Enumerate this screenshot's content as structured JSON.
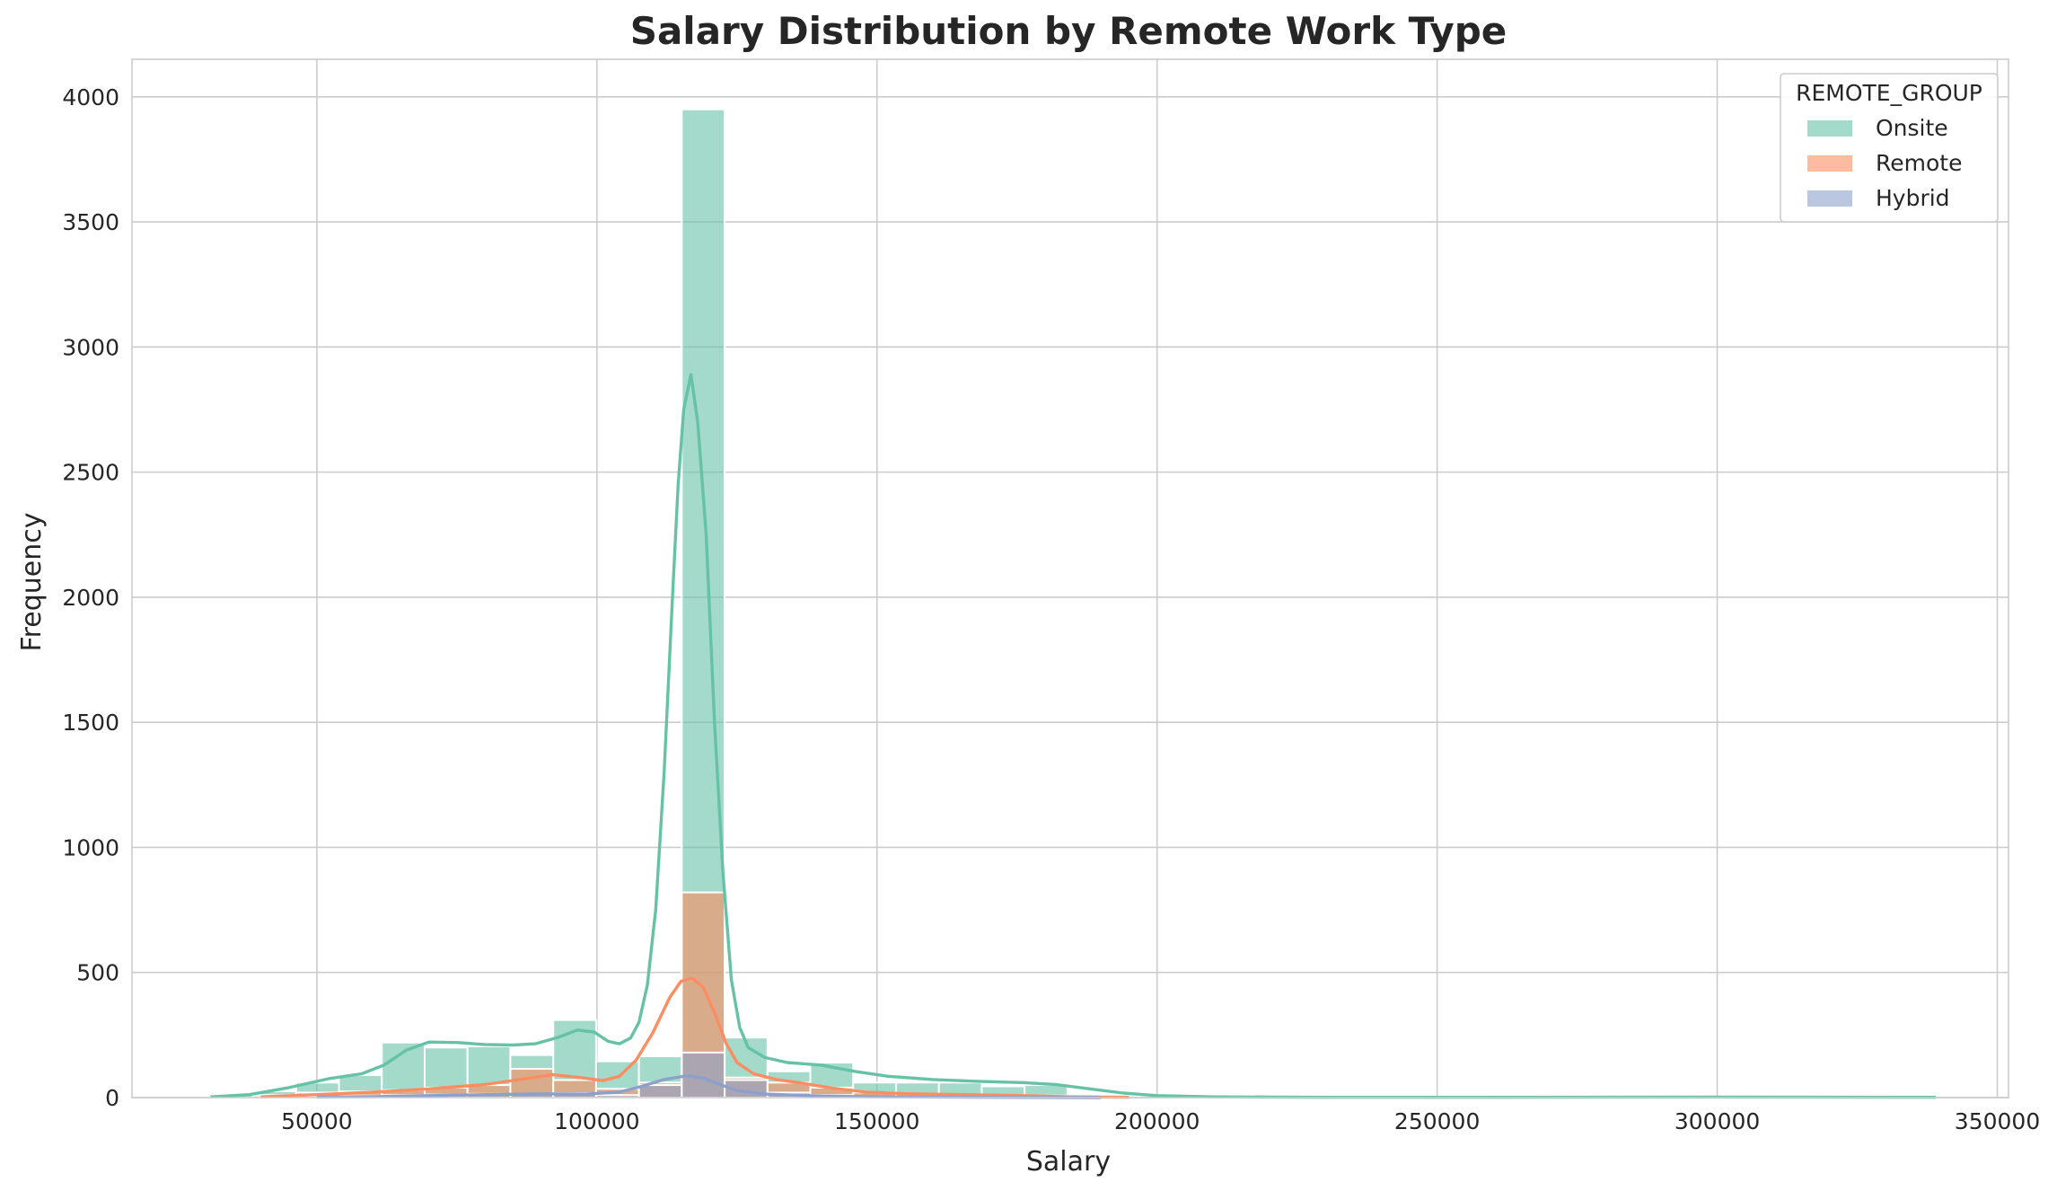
{
  "chart_data": {
    "type": "histogram",
    "title": "Salary Distribution by Remote Work Type",
    "xlabel": "Salary",
    "ylabel": "Frequency",
    "xlim": [
      17000,
      352000
    ],
    "ylim": [
      0,
      4150
    ],
    "xticks": [
      50000,
      100000,
      150000,
      200000,
      250000,
      300000,
      350000
    ],
    "yticks": [
      0,
      500,
      1000,
      1500,
      2000,
      2500,
      3000,
      3500,
      4000
    ],
    "grid": true,
    "legend": {
      "title": "REMOTE_GROUP",
      "position": "top-right"
    },
    "bin_edges": [
      31000,
      38650,
      46300,
      53950,
      61600,
      69250,
      76900,
      84550,
      92200,
      99850,
      107500,
      115150,
      122800,
      130450,
      138100,
      145750,
      153400,
      161050,
      168700,
      176350,
      184000
    ],
    "series": [
      {
        "name": "Onsite",
        "color": "#66c2a5",
        "counts": [
          10,
          25,
          60,
          90,
          220,
          200,
          205,
          170,
          310,
          145,
          165,
          3950,
          240,
          105,
          140,
          60,
          60,
          60,
          45,
          50
        ],
        "kde": [
          [
            31000,
            3
          ],
          [
            38000,
            12
          ],
          [
            45000,
            40
          ],
          [
            52000,
            75
          ],
          [
            58000,
            95
          ],
          [
            62000,
            130
          ],
          [
            66000,
            190
          ],
          [
            70000,
            222
          ],
          [
            75000,
            220
          ],
          [
            80000,
            212
          ],
          [
            85000,
            210
          ],
          [
            89000,
            215
          ],
          [
            93000,
            240
          ],
          [
            96500,
            270
          ],
          [
            99500,
            262
          ],
          [
            102000,
            225
          ],
          [
            104000,
            215
          ],
          [
            106000,
            238
          ],
          [
            107500,
            300
          ],
          [
            109000,
            450
          ],
          [
            110500,
            750
          ],
          [
            112000,
            1300
          ],
          [
            113500,
            2000
          ],
          [
            114500,
            2450
          ],
          [
            115500,
            2750
          ],
          [
            116800,
            2890
          ],
          [
            118000,
            2700
          ],
          [
            119500,
            2250
          ],
          [
            121000,
            1500
          ],
          [
            122500,
            900
          ],
          [
            124000,
            470
          ],
          [
            125500,
            280
          ],
          [
            127000,
            200
          ],
          [
            130000,
            160
          ],
          [
            134000,
            140
          ],
          [
            140000,
            130
          ],
          [
            146000,
            105
          ],
          [
            152000,
            85
          ],
          [
            160000,
            72
          ],
          [
            168000,
            65
          ],
          [
            176000,
            60
          ],
          [
            182000,
            52
          ],
          [
            188000,
            35
          ],
          [
            194000,
            18
          ],
          [
            200000,
            8
          ],
          [
            210000,
            3
          ],
          [
            230000,
            1
          ],
          [
            260000,
            1
          ],
          [
            300000,
            2
          ],
          [
            339000,
            1
          ]
        ]
      },
      {
        "name": "Remote",
        "color": "#fc8d62",
        "counts": [
          0,
          10,
          20,
          25,
          30,
          40,
          50,
          115,
          70,
          35,
          60,
          820,
          80,
          60,
          40,
          20,
          15,
          10,
          10,
          8
        ],
        "kde": [
          [
            40000,
            3
          ],
          [
            50000,
            12
          ],
          [
            60000,
            22
          ],
          [
            70000,
            35
          ],
          [
            80000,
            52
          ],
          [
            88000,
            78
          ],
          [
            92000,
            92
          ],
          [
            97000,
            80
          ],
          [
            101000,
            68
          ],
          [
            104000,
            85
          ],
          [
            107000,
            150
          ],
          [
            110000,
            260
          ],
          [
            113000,
            400
          ],
          [
            115000,
            465
          ],
          [
            117000,
            478
          ],
          [
            119000,
            440
          ],
          [
            121000,
            340
          ],
          [
            123000,
            220
          ],
          [
            125000,
            140
          ],
          [
            128000,
            95
          ],
          [
            132000,
            72
          ],
          [
            136000,
            60
          ],
          [
            142000,
            38
          ],
          [
            148000,
            22
          ],
          [
            156000,
            15
          ],
          [
            166000,
            12
          ],
          [
            176000,
            8
          ],
          [
            185000,
            3
          ],
          [
            195000,
            1
          ]
        ]
      },
      {
        "name": "Hybrid",
        "color": "#8da0cb",
        "counts": [
          0,
          2,
          5,
          8,
          10,
          12,
          15,
          15,
          18,
          10,
          50,
          180,
          70,
          20,
          10,
          5,
          5,
          3,
          2,
          1
        ],
        "kde": [
          [
            50000,
            2
          ],
          [
            60000,
            4
          ],
          [
            70000,
            8
          ],
          [
            80000,
            12
          ],
          [
            90000,
            15
          ],
          [
            98000,
            14
          ],
          [
            104000,
            22
          ],
          [
            108000,
            45
          ],
          [
            112000,
            72
          ],
          [
            116000,
            87
          ],
          [
            119000,
            78
          ],
          [
            122000,
            52
          ],
          [
            125000,
            28
          ],
          [
            130000,
            14
          ],
          [
            140000,
            6
          ],
          [
            150000,
            3
          ],
          [
            170000,
            1
          ],
          [
            190000,
            0
          ]
        ]
      }
    ]
  }
}
